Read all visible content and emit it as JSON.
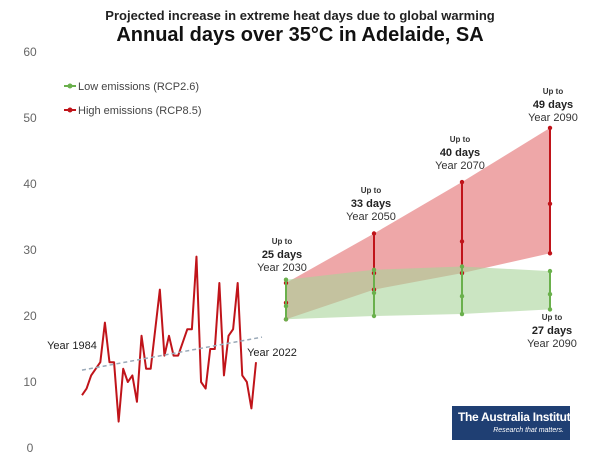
{
  "chart_data": {
    "type": "line",
    "subtitle": "Projected increase in extreme heat days due to global warming",
    "title": "Annual days over 35°C in Adelaide, SA",
    "xlabel": "",
    "ylabel": "",
    "ylim": [
      0,
      60
    ],
    "yticks": [
      0,
      10,
      20,
      30,
      40,
      50,
      60
    ],
    "grid": false,
    "legend": {
      "placement": "top-left",
      "entries": [
        {
          "label": "Low emissions (RCP2.6)",
          "color": "#6ab04c"
        },
        {
          "label": "High emissions (RCP8.5)",
          "color": "#c0141a"
        }
      ]
    },
    "historical": {
      "color": "#c0141a",
      "start_label": "Year 1984",
      "end_label": "Year 2022",
      "x": [
        1984,
        1985,
        1986,
        1987,
        1988,
        1989,
        1990,
        1991,
        1992,
        1993,
        1994,
        1995,
        1996,
        1997,
        1998,
        1999,
        2000,
        2001,
        2002,
        2003,
        2004,
        2005,
        2006,
        2007,
        2008,
        2009,
        2010,
        2011,
        2012,
        2013,
        2014,
        2015,
        2016,
        2017,
        2018,
        2019,
        2020,
        2021,
        2022
      ],
      "values": [
        8,
        9,
        11,
        12,
        13,
        19,
        13,
        13,
        4,
        12,
        10,
        11,
        7,
        17,
        12,
        12,
        18,
        24,
        14,
        17,
        14,
        14,
        16,
        18,
        18,
        29,
        10,
        9,
        15,
        15,
        25,
        11,
        17,
        18,
        25,
        11,
        10,
        6,
        13
      ],
      "trend": {
        "start": 11.8,
        "end": 16.8,
        "color": "#9aa9b8"
      }
    },
    "projection_years": [
      2030,
      2050,
      2070,
      2090
    ],
    "projections": [
      {
        "name": "High emissions (RCP8.5)",
        "color": "#c0141a",
        "fill": "#e8898b",
        "low": [
          19.5,
          24.0,
          26.5,
          29.5
        ],
        "median": [
          22.0,
          26.5,
          31.3,
          37.0
        ],
        "high": [
          25.0,
          32.5,
          40.3,
          48.5
        ]
      },
      {
        "name": "Low emissions (RCP2.6)",
        "color": "#6ab04c",
        "fill": "#a8d49a",
        "low": [
          19.5,
          20.0,
          20.3,
          21.0
        ],
        "median": [
          21.5,
          23.5,
          23.0,
          23.3
        ],
        "high": [
          25.5,
          27.0,
          27.5,
          26.8
        ]
      }
    ],
    "annotations": [
      {
        "upto": "Up to",
        "days": "25 days",
        "year": "Year 2030"
      },
      {
        "upto": "Up to",
        "days": "33 days",
        "year": "Year 2050"
      },
      {
        "upto": "Up to",
        "days": "40 days",
        "year": "Year 2070"
      },
      {
        "upto": "Up to",
        "days": "49 days",
        "year": "Year 2090"
      },
      {
        "upto": "Up to",
        "days": "27 days",
        "year": "Year 2090"
      }
    ]
  },
  "logo": {
    "name": "The Australia Institute",
    "tagline": "Research that matters."
  }
}
